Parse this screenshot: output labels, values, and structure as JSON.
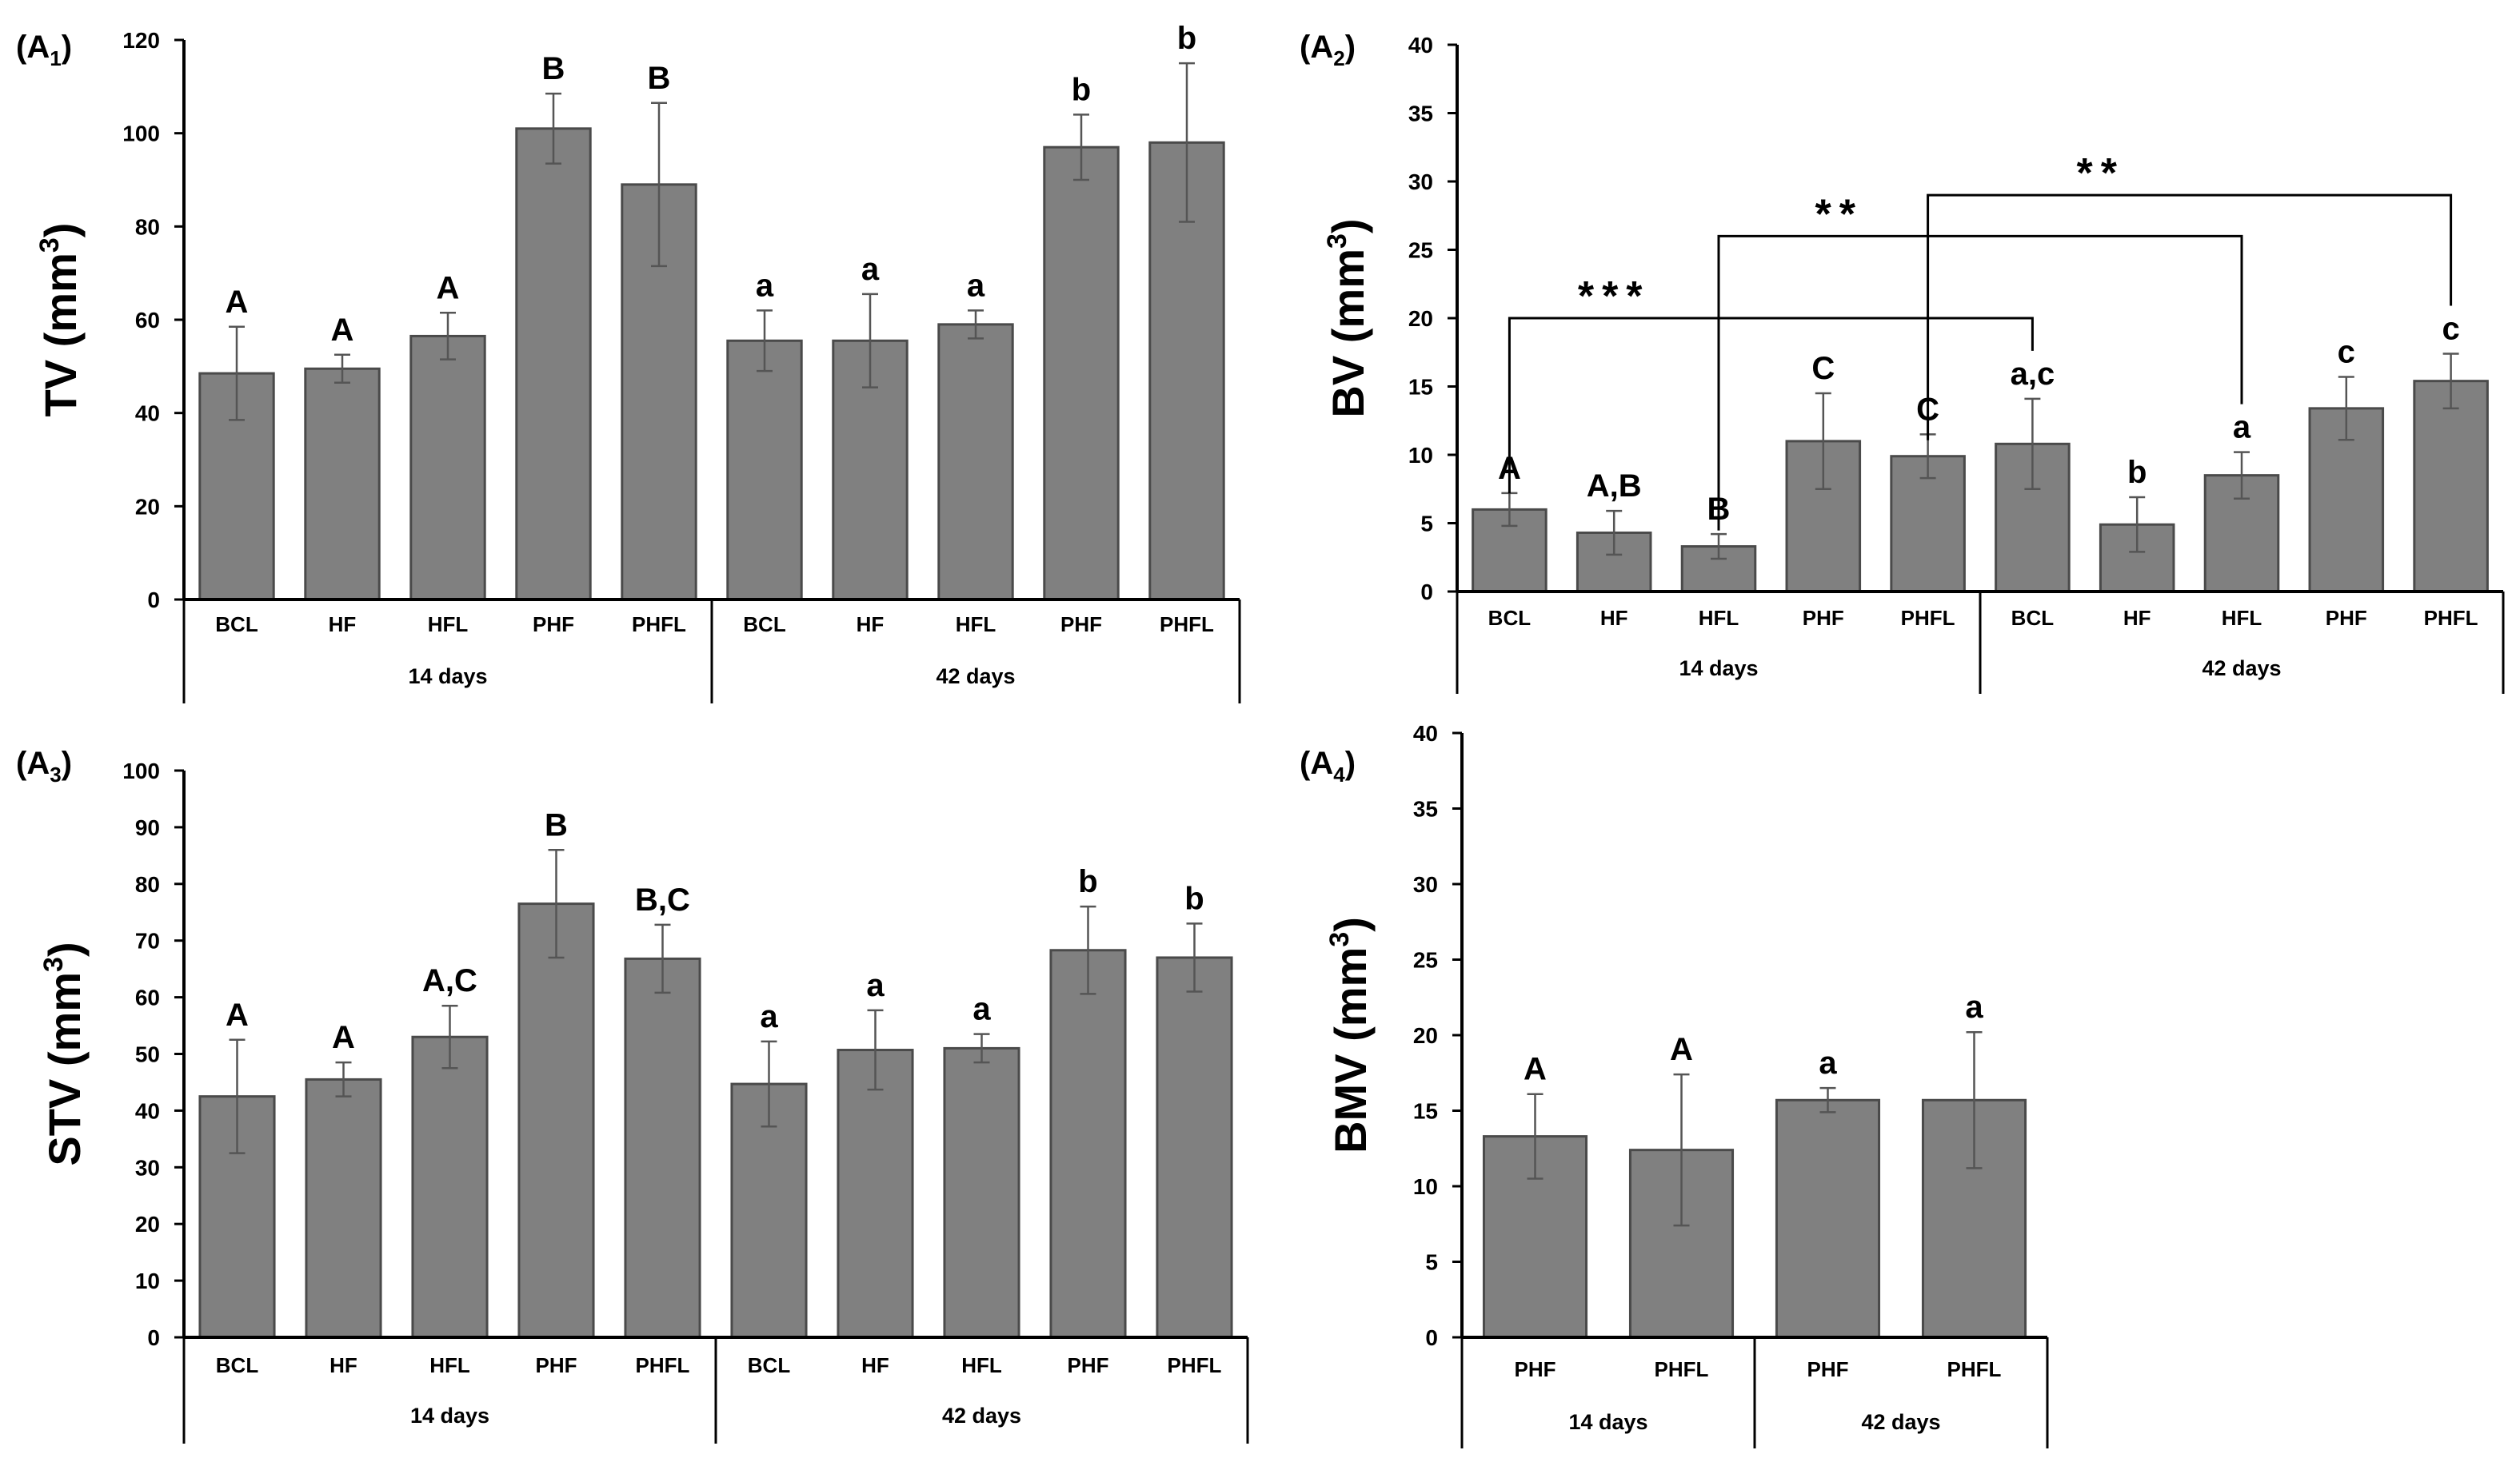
{
  "colors": {
    "bar": "#808080",
    "bar_edge": "#4a4a4a",
    "axis": "#000000",
    "text": "#000000",
    "error": "#555555"
  },
  "groups": {
    "g14": "14 days",
    "g42": "42 days"
  },
  "chart_data": [
    {
      "id": "A1",
      "type": "bar",
      "panel_label": "(A",
      "panel_sub": "1",
      "ylabel": "TV (mm",
      "ylabel_sup": "3",
      "ylim": [
        0,
        120
      ],
      "ytick_step": 20,
      "yticks": [
        "0",
        "20",
        "40",
        "60",
        "80",
        "100",
        "120"
      ],
      "categories": [
        "BCL",
        "HF",
        "HFL",
        "PHF",
        "PHFL",
        "BCL",
        "HF",
        "HFL",
        "PHF",
        "PHFL"
      ],
      "groups": [
        "14 days",
        "42 days"
      ],
      "values": [
        48.5,
        49.5,
        56.5,
        101,
        89,
        55.5,
        55.5,
        59,
        97,
        98
      ],
      "errors": [
        10,
        3,
        5,
        7.5,
        17.5,
        6.5,
        10,
        3,
        7,
        17
      ],
      "letters": [
        "A",
        "A",
        "A",
        "B",
        "B",
        "a",
        "a",
        "a",
        "b",
        "b"
      ]
    },
    {
      "id": "A2",
      "type": "bar",
      "panel_label": "(A",
      "panel_sub": "2",
      "ylabel": "BV (mm",
      "ylabel_sup": "3",
      "ylim": [
        0,
        40
      ],
      "ytick_step": 5,
      "yticks": [
        "0",
        "5",
        "10",
        "15",
        "20",
        "25",
        "30",
        "35",
        "40"
      ],
      "categories": [
        "BCL",
        "HF",
        "HFL",
        "PHF",
        "PHFL",
        "BCL",
        "HF",
        "HFL",
        "PHF",
        "PHFL"
      ],
      "groups": [
        "14 days",
        "42 days"
      ],
      "values": [
        6,
        4.3,
        3.3,
        11,
        9.9,
        10.8,
        4.9,
        8.5,
        13.4,
        15.4
      ],
      "errors": [
        1.2,
        1.6,
        0.9,
        3.5,
        1.6,
        3.3,
        2,
        1.7,
        2.3,
        2
      ],
      "letters": [
        "A",
        "A,B",
        "B",
        "C",
        "C",
        "a,c",
        "b",
        "a",
        "c",
        "c"
      ],
      "significance": [
        {
          "from": 0,
          "to": 5,
          "label": "***",
          "level": 20
        },
        {
          "from": 2,
          "to": 7,
          "label": "**",
          "level": 26
        },
        {
          "from": 4,
          "to": 9,
          "label": "**",
          "level": 29
        }
      ]
    },
    {
      "id": "A3",
      "type": "bar",
      "panel_label": "(A",
      "panel_sub": "3",
      "ylabel": "STV (mm",
      "ylabel_sup": "3",
      "ylim": [
        0,
        100
      ],
      "ytick_step": 10,
      "yticks": [
        "0",
        "10",
        "20",
        "30",
        "40",
        "50",
        "60",
        "70",
        "80",
        "90",
        "100"
      ],
      "categories": [
        "BCL",
        "HF",
        "HFL",
        "PHF",
        "PHFL",
        "BCL",
        "HF",
        "HFL",
        "PHF",
        "PHFL"
      ],
      "groups": [
        "14 days",
        "42 days"
      ],
      "values": [
        42.5,
        45.5,
        53,
        76.5,
        66.8,
        44.7,
        50.7,
        51,
        68.3,
        67
      ],
      "errors": [
        10,
        3,
        5.5,
        9.5,
        6,
        7.5,
        7,
        2.5,
        7.7,
        6
      ],
      "letters": [
        "A",
        "A",
        "A,C",
        "B",
        "B,C",
        "a",
        "a",
        "a",
        "b",
        "b"
      ]
    },
    {
      "id": "A4",
      "type": "bar",
      "panel_label": "(A",
      "panel_sub": "4",
      "ylabel": "BMV (mm",
      "ylabel_sup": "3",
      "ylim": [
        0,
        40
      ],
      "ytick_step": 5,
      "yticks": [
        "0",
        "5",
        "10",
        "15",
        "20",
        "25",
        "30",
        "35",
        "40"
      ],
      "categories": [
        "PHF",
        "PHFL",
        "PHF",
        "PHFL"
      ],
      "groups": [
        "14 days",
        "42 days"
      ],
      "values": [
        13.3,
        12.4,
        15.7,
        15.7
      ],
      "errors": [
        2.8,
        5,
        0.8,
        4.5
      ],
      "letters": [
        "A",
        "A",
        "a",
        "a"
      ]
    }
  ]
}
